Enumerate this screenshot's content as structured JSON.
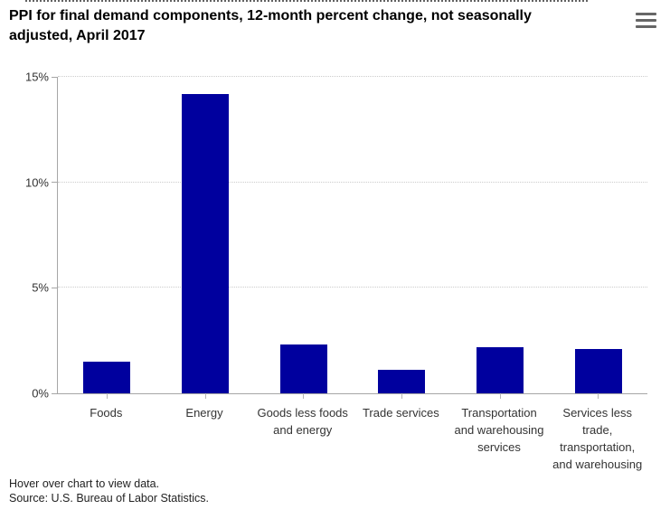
{
  "header": {
    "title": "PPI for final demand components, 12-month percent change, not seasonally adjusted, April 2017"
  },
  "menu": {
    "icon": "hamburger-menu-icon"
  },
  "chart_data": {
    "type": "bar",
    "title": "PPI for final demand components, 12-month percent change, not seasonally adjusted, April 2017",
    "categories": [
      "Foods",
      "Energy",
      "Goods less foods and energy",
      "Trade services",
      "Transportation and warehousing services",
      "Services less trade, transportation, and warehousing"
    ],
    "category_lines": [
      [
        "Foods"
      ],
      [
        "Energy"
      ],
      [
        "Goods less foods",
        "and energy"
      ],
      [
        "Trade services"
      ],
      [
        "Transportation",
        "and warehousing",
        "services"
      ],
      [
        "Services less",
        "trade,",
        "transportation,",
        "and warehousing"
      ]
    ],
    "values": [
      1.5,
      14.2,
      2.3,
      1.1,
      2.2,
      2.1
    ],
    "unit": "%",
    "xlabel": "",
    "ylabel": "",
    "ylim": [
      0,
      15
    ],
    "yticks": [
      0,
      5,
      10,
      15
    ],
    "ytick_labels": [
      "0%",
      "5%",
      "10%",
      "15%"
    ],
    "bar_color": "#00009E",
    "axis_color": "#a6a6a6",
    "grid": "horizontal dotted",
    "grid_color": "#cccccc",
    "legend": "none"
  },
  "footer": {
    "hover_note": "Hover over chart to view data.",
    "source": "Source: U.S. Bureau of Labor Statistics."
  }
}
